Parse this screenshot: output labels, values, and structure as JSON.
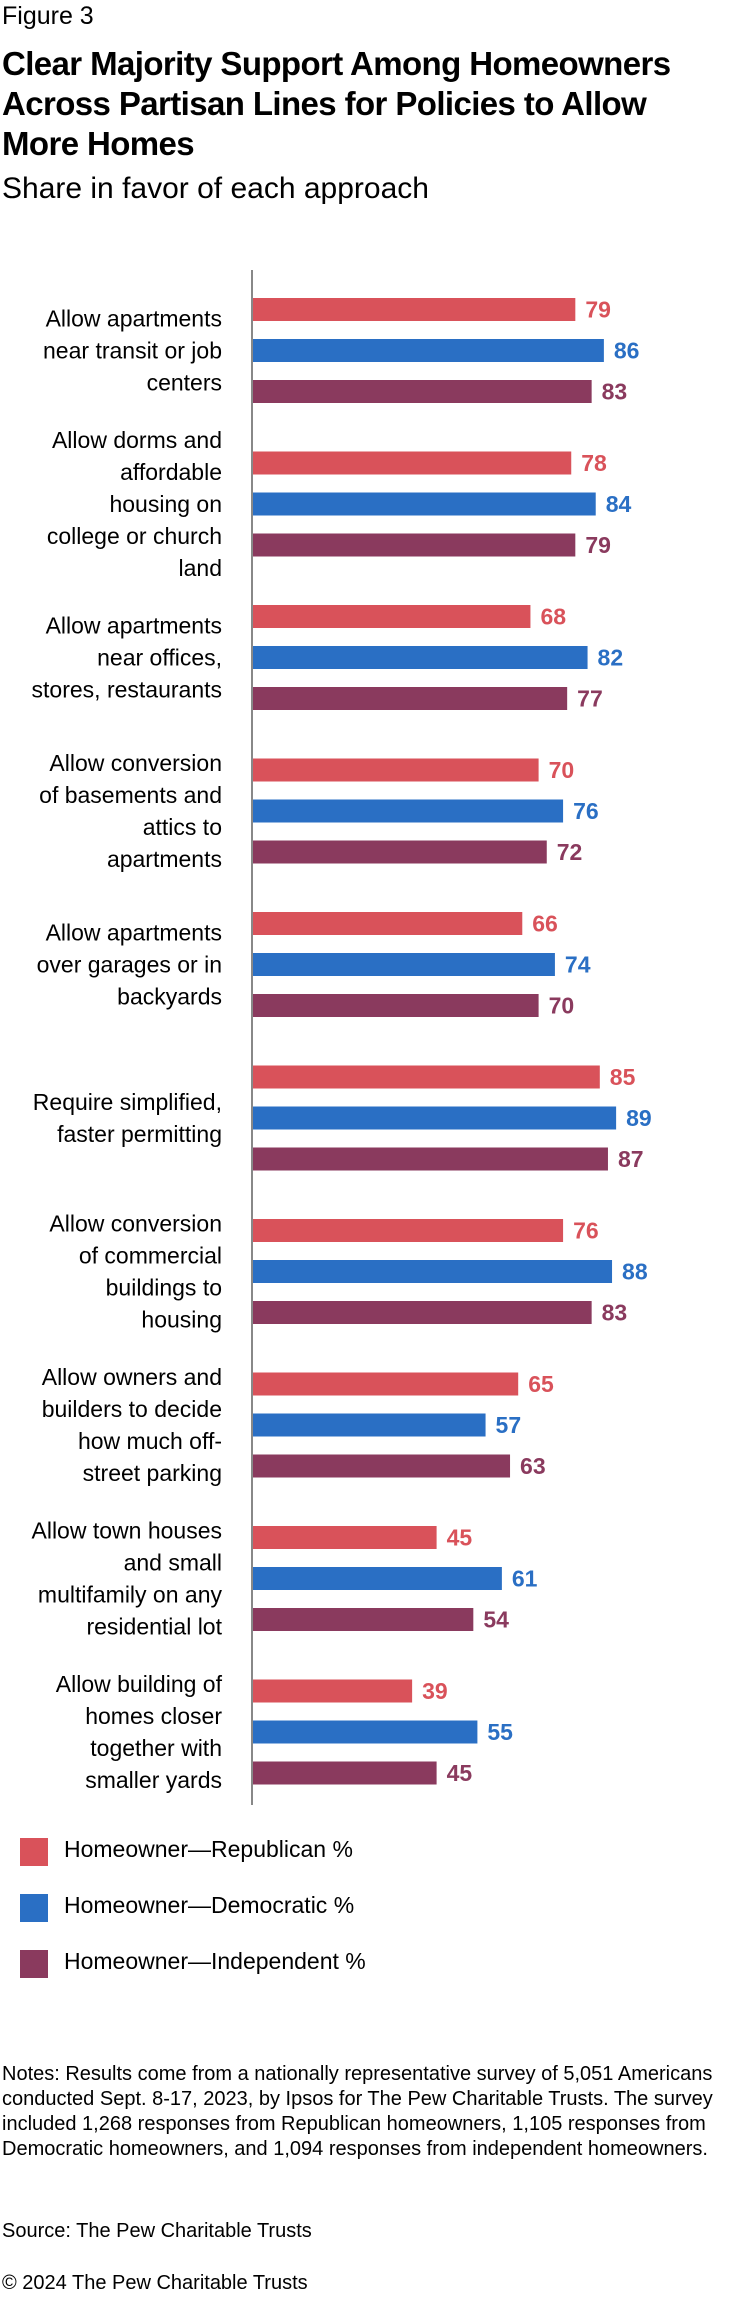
{
  "figure_label": "Figure 3",
  "title": "Clear Majority Support Among Homeowners Across Partisan Lines for Policies to Allow More Homes",
  "subtitle": "Share in favor of each approach",
  "colors": {
    "republican": "#d9525a",
    "democratic": "#2a6fc4",
    "independent": "#8a3a5e",
    "axis": "#888888"
  },
  "chart_data": {
    "type": "bar",
    "orientation": "horizontal",
    "categories": [
      [
        "Allow apartments",
        "near transit or job",
        "centers"
      ],
      [
        "Allow dorms and",
        "affordable",
        "housing on",
        "college or church",
        "land"
      ],
      [
        "Allow apartments",
        "near offices,",
        "stores, restaurants"
      ],
      [
        "Allow conversion",
        "of basements and",
        "attics to",
        "apartments"
      ],
      [
        "Allow apartments",
        "over garages or in",
        "backyards"
      ],
      [
        "Require simplified,",
        "faster permitting"
      ],
      [
        "Allow conversion",
        "of commercial",
        "buildings to",
        "housing"
      ],
      [
        "Allow owners and",
        "builders to decide",
        "how much off-",
        "street parking"
      ],
      [
        "Allow town houses",
        "and small",
        "multifamily on any",
        "residential lot"
      ],
      [
        "Allow building of",
        "homes closer",
        "together with",
        "smaller yards"
      ]
    ],
    "series": [
      {
        "name": "Homeowner—Republican %",
        "values": [
          79,
          78,
          68,
          70,
          66,
          85,
          76,
          65,
          45,
          39
        ]
      },
      {
        "name": "Homeowner—Democratic %",
        "values": [
          86,
          84,
          82,
          76,
          74,
          89,
          88,
          57,
          61,
          55
        ]
      },
      {
        "name": "Homeowner—Independent %",
        "values": [
          83,
          79,
          77,
          72,
          70,
          87,
          83,
          63,
          54,
          45
        ]
      }
    ],
    "xlim": [
      0,
      100
    ],
    "grid": false,
    "legend": "bottom"
  },
  "notes": "Notes: Results come from a nationally representative survey of 5,051 Americans conducted Sept. 8-17, 2023, by Ipsos for The Pew Charitable Trusts. The survey included 1,268 responses from Republican homeowners, 1,105 responses from Democratic homeowners, and 1,094 responses from independent homeowners.",
  "source": "Source: The Pew Charitable Trusts",
  "copyright": "© 2024 The Pew Charitable Trusts"
}
